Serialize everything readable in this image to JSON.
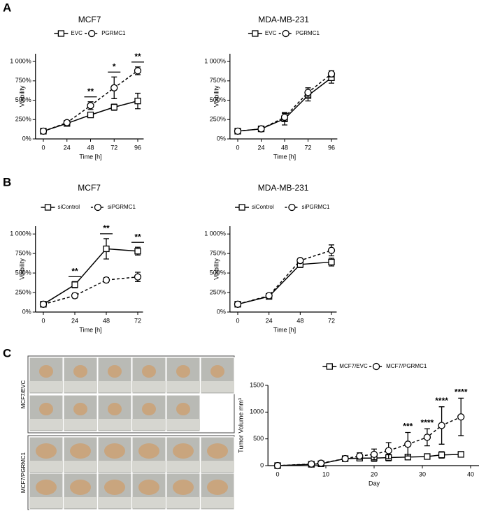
{
  "panels": [
    "A",
    "B",
    "C"
  ],
  "photo": {
    "row_labels": [
      "MCF7/EVC",
      "MCF7/PGRMC1"
    ]
  },
  "chart_data": [
    {
      "type": "line",
      "title": "MCF7",
      "x_label": "Time [h]",
      "y_label": "Viability",
      "x": [
        0,
        24,
        48,
        72,
        96
      ],
      "xlim": [
        -8,
        102
      ],
      "xticks": [
        0,
        24,
        48,
        72,
        96
      ],
      "ylim": [
        0,
        1100
      ],
      "yticks": [
        {
          "value": 0,
          "label": "0%"
        },
        {
          "value": 250,
          "label": "250%"
        },
        {
          "value": 500,
          "label": "500%"
        },
        {
          "value": 750,
          "label": "750%"
        },
        {
          "value": 1000,
          "label": "1 000%"
        }
      ],
      "series": [
        {
          "name": "EVC",
          "color": "#000000",
          "marker": "square",
          "line_style": "solid",
          "values": [
            100,
            200,
            310,
            410,
            490
          ],
          "errors": [
            10,
            20,
            30,
            40,
            100
          ]
        },
        {
          "name": "PGRMC1",
          "color": "#000000",
          "marker": "circle",
          "line_style": "dashed",
          "values": [
            100,
            210,
            430,
            660,
            880
          ],
          "errors": [
            10,
            15,
            50,
            140,
            50
          ]
        }
      ],
      "annotations": [
        {
          "text": "**",
          "x": 48
        },
        {
          "text": "*",
          "x": 72
        },
        {
          "text": "**",
          "x": 96
        }
      ]
    },
    {
      "type": "line",
      "title": "MDA-MB-231",
      "x_label": "Time [h]",
      "y_label": "Viability",
      "x": [
        0,
        24,
        48,
        72,
        96
      ],
      "xlim": [
        -8,
        102
      ],
      "xticks": [
        0,
        24,
        48,
        72,
        96
      ],
      "ylim": [
        0,
        1100
      ],
      "yticks": [
        {
          "value": 0,
          "label": "0%"
        },
        {
          "value": 250,
          "label": "250%"
        },
        {
          "value": 500,
          "label": "500%"
        },
        {
          "value": 750,
          "label": "750%"
        },
        {
          "value": 1000,
          "label": "1 000%"
        }
      ],
      "series": [
        {
          "name": "EVC",
          "color": "#000000",
          "marker": "square",
          "line_style": "solid",
          "values": [
            100,
            130,
            260,
            560,
            790
          ],
          "errors": [
            10,
            10,
            80,
            70,
            70
          ]
        },
        {
          "name": "PGRMC1",
          "color": "#000000",
          "marker": "circle",
          "line_style": "dashed",
          "values": [
            100,
            130,
            280,
            600,
            840
          ],
          "errors": [
            10,
            10,
            50,
            60,
            40
          ]
        }
      ],
      "annotations": []
    },
    {
      "type": "line",
      "title": "MCF7",
      "x_label": "Time [h]",
      "y_label": "Viability",
      "x": [
        0,
        24,
        48,
        72
      ],
      "xlim": [
        -6,
        76
      ],
      "xticks": [
        0,
        24,
        48,
        72
      ],
      "ylim": [
        0,
        1100
      ],
      "yticks": [
        {
          "value": 0,
          "label": "0%"
        },
        {
          "value": 250,
          "label": "250%"
        },
        {
          "value": 500,
          "label": "500%"
        },
        {
          "value": 750,
          "label": "750%"
        },
        {
          "value": 1000,
          "label": "1 000%"
        }
      ],
      "series": [
        {
          "name": "siControl",
          "color": "#000000",
          "marker": "square",
          "line_style": "solid",
          "values": [
            100,
            350,
            810,
            780
          ],
          "errors": [
            10,
            40,
            130,
            50
          ]
        },
        {
          "name": "siPGRMC1",
          "color": "#000000",
          "marker": "circle",
          "line_style": "dashed",
          "values": [
            100,
            210,
            410,
            450
          ],
          "errors": [
            10,
            30,
            30,
            60
          ]
        }
      ],
      "annotations": [
        {
          "text": "**",
          "x": 24
        },
        {
          "text": "**",
          "x": 48
        },
        {
          "text": "**",
          "x": 72
        }
      ]
    },
    {
      "type": "line",
      "title": "MDA-MB-231",
      "x_label": "Time [h]",
      "y_label": "Viability",
      "x": [
        0,
        24,
        48,
        72
      ],
      "xlim": [
        -6,
        76
      ],
      "xticks": [
        0,
        24,
        48,
        72
      ],
      "ylim": [
        0,
        1100
      ],
      "yticks": [
        {
          "value": 0,
          "label": "0%"
        },
        {
          "value": 250,
          "label": "250%"
        },
        {
          "value": 500,
          "label": "500%"
        },
        {
          "value": 750,
          "label": "750%"
        },
        {
          "value": 1000,
          "label": "1 000%"
        }
      ],
      "series": [
        {
          "name": "siControl",
          "color": "#000000",
          "marker": "square",
          "line_style": "solid",
          "values": [
            100,
            200,
            610,
            640
          ],
          "errors": [
            10,
            20,
            40,
            50
          ]
        },
        {
          "name": "siPGRMC1",
          "color": "#000000",
          "marker": "circle",
          "line_style": "dashed",
          "values": [
            100,
            210,
            660,
            790
          ],
          "errors": [
            10,
            15,
            20,
            70
          ]
        }
      ],
      "annotations": []
    },
    {
      "type": "line",
      "x_label": "Day",
      "y_label": "Tumor Volume mm³",
      "x": [
        0,
        7,
        9,
        14,
        17,
        20,
        23,
        27,
        31,
        34,
        38
      ],
      "xlim": [
        -2,
        42
      ],
      "xticks": [
        0,
        10,
        20,
        30,
        40
      ],
      "ylim": [
        0,
        1500
      ],
      "yticks": [
        0,
        500,
        1000,
        1500
      ],
      "series": [
        {
          "name": "MCF7/EVC",
          "color": "#000000",
          "marker": "square",
          "line_style": "solid",
          "values": [
            0,
            25,
            35,
            130,
            140,
            140,
            150,
            160,
            170,
            200,
            210
          ],
          "errors": [
            0,
            15,
            10,
            30,
            40,
            60,
            60,
            50,
            50,
            60,
            50
          ]
        },
        {
          "name": "MCF7/PGRMC1",
          "color": "#000000",
          "marker": "circle",
          "line_style": "dashed",
          "values": [
            0,
            30,
            45,
            130,
            180,
            210,
            280,
            400,
            530,
            750,
            910
          ],
          "errors": [
            0,
            20,
            20,
            40,
            60,
            100,
            150,
            220,
            160,
            350,
            350
          ]
        }
      ],
      "annotations": [
        {
          "text": "***",
          "x": 27
        },
        {
          "text": "****",
          "x": 31
        },
        {
          "text": "****",
          "x": 34
        },
        {
          "text": "****",
          "x": 38
        }
      ]
    }
  ]
}
